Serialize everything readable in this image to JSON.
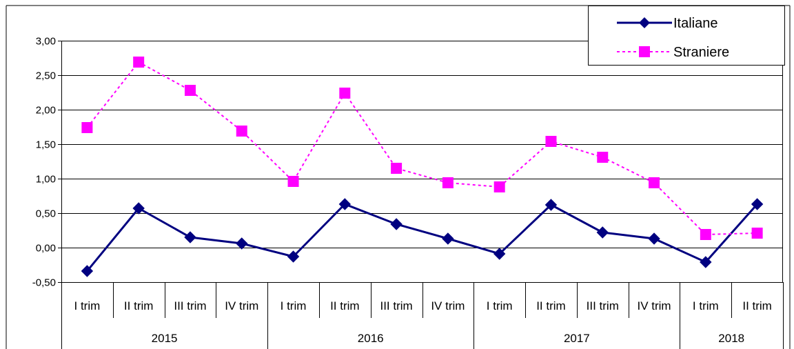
{
  "chart_data": {
    "type": "line",
    "title": "",
    "xlabel": "",
    "ylabel": "",
    "ylim": [
      -0.5,
      3.0
    ],
    "y_ticks": [
      "3,00",
      "2,50",
      "2,00",
      "1,50",
      "1,00",
      "0,50",
      "0,00",
      "-0,50"
    ],
    "y_tick_values": [
      3.0,
      2.5,
      2.0,
      1.5,
      1.0,
      0.5,
      0.0,
      -0.5
    ],
    "grid": true,
    "legend_position": "top-right",
    "categories": [
      "I trim",
      "II trim",
      "III trim",
      "IV trim",
      "I trim",
      "II trim",
      "III trim",
      "IV trim",
      "I trim",
      "II trim",
      "III trim",
      "IV trim",
      "I trim",
      "II trim"
    ],
    "groups": [
      {
        "label": "2015",
        "count": 4
      },
      {
        "label": "2016",
        "count": 4
      },
      {
        "label": "2017",
        "count": 4
      },
      {
        "label": "2018",
        "count": 2
      }
    ],
    "series": [
      {
        "name": "Italiane",
        "color": "#000080",
        "marker": "diamond",
        "line_style": "solid",
        "values": [
          -0.34,
          0.57,
          0.15,
          0.06,
          -0.13,
          0.63,
          0.34,
          0.13,
          -0.09,
          0.62,
          0.22,
          0.13,
          -0.21,
          0.63
        ]
      },
      {
        "name": "Straniere",
        "color": "#FF00FF",
        "marker": "square",
        "line_style": "dashed",
        "values": [
          1.74,
          2.69,
          2.28,
          1.69,
          0.96,
          2.24,
          1.15,
          0.94,
          0.88,
          1.54,
          1.31,
          0.94,
          0.19,
          0.21
        ]
      }
    ]
  }
}
